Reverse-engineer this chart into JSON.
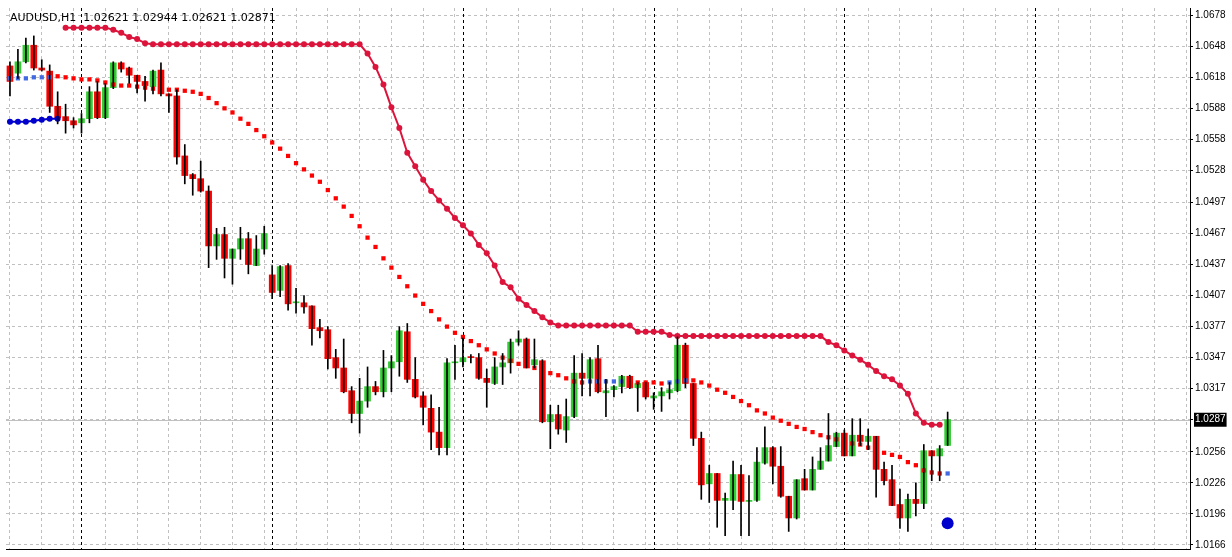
{
  "chart_data": {
    "type": "candlestick",
    "title": "AUDUSD,H1  1.02621 1.02944 1.02621 1.02871",
    "categories": [
      null,
      null,
      null,
      null,
      null,
      null,
      null,
      null,
      null,
      null,
      null,
      null,
      null,
      null,
      null,
      null,
      null,
      null,
      null,
      null,
      null,
      null,
      null,
      null,
      null,
      null,
      null,
      null,
      null,
      null,
      null,
      null,
      null,
      null,
      null,
      null,
      null,
      null,
      null,
      null,
      null,
      null,
      null,
      null,
      null,
      null,
      null,
      null,
      null,
      null,
      null,
      null,
      null,
      null,
      null,
      null,
      null,
      null,
      null,
      null,
      null,
      null,
      null,
      null,
      null,
      null,
      null,
      null,
      null,
      null,
      null,
      null,
      null,
      null,
      null,
      null,
      null,
      null,
      null,
      null,
      null,
      null,
      null,
      null,
      null,
      null,
      null,
      null,
      null,
      null,
      null,
      null,
      null,
      null,
      null,
      null,
      null,
      null,
      null,
      null,
      null,
      null,
      null,
      null,
      null,
      null,
      null,
      null,
      null,
      null,
      null,
      null,
      null,
      null,
      null,
      null,
      null,
      null,
      null,
      null,
      null,
      null,
      null,
      null,
      null,
      null,
      null,
      null,
      null,
      null,
      null,
      null,
      null,
      null,
      null,
      null,
      null,
      null,
      null,
      null,
      null,
      null,
      null,
      null,
      null,
      null,
      null,
      null,
      null
    ],
    "colors": [
      "#ff0000",
      "#32cd32",
      "#32cd32",
      "#ff0000",
      "#ff0000",
      "#ff0000",
      "#ff0000",
      "#ff0000",
      "#ff0000",
      "#32cd32",
      "#32cd32",
      "#ff0000",
      "#32cd32",
      "#32cd32",
      "#ff0000",
      "#ff0000",
      "#ff0000",
      "#ff0000",
      "#32cd32",
      "#ff0000",
      "#ff0000",
      "#ff0000",
      "#ff0000",
      "#ff0000",
      "#ff0000",
      "#ff0000",
      "#32cd32",
      "#ff0000",
      "#32cd32",
      "#32cd32",
      "#ff0000",
      "#32cd32",
      "#32cd32",
      "#ff0000",
      "#32cd32",
      "#ff0000",
      "#32cd32",
      "#ff0000",
      "#ff0000",
      "#ff0000",
      "#ff0000",
      "#ff0000",
      "#ff0000",
      "#ff0000",
      "#32cd32",
      "#32cd32",
      "#ff0000",
      "#32cd32",
      "#32cd32",
      "#32cd32",
      "#ff0000",
      "#ff0000",
      "#ff0000",
      "#ff0000",
      "#ff0000",
      "#32cd32",
      "#32cd32",
      "#32cd32",
      "#ff0000",
      "#ff0000",
      "#ff0000",
      "#32cd32",
      "#32cd32",
      "#32cd32",
      "#32cd32",
      "#ff0000",
      "#32cd32",
      "#ff0000",
      "#32cd32",
      "#ff0000",
      "#32cd32",
      "#32cd32",
      "#ff0000",
      "#32cd32",
      "#ff0000",
      "#32cd32",
      "#32cd32",
      "#32cd32",
      "#ff0000",
      "#32cd32",
      "#ff0000",
      "#32cd32",
      "#32cd32",
      "#32cd32",
      "#32cd32",
      "#ff0000",
      "#ff0000",
      "#ff0000",
      "#32cd32",
      "#ff0000",
      "#32cd32",
      "#32cd32",
      "#ff0000",
      "#32cd32",
      "#32cd32",
      "#32cd32",
      "#ff0000",
      "#ff0000",
      "#ff0000",
      "#32cd32",
      "#ff0000",
      "#32cd32",
      "#32cd32",
      "#32cd32",
      "#32cd32",
      "#ff0000",
      "#32cd32",
      "#ff0000",
      "#32cd32",
      "#ff0000",
      "#ff0000",
      "#ff0000",
      "#ff0000",
      "#32cd32",
      "#ff0000",
      "#32cd32",
      "#ff0000",
      "#32cd32",
      "#32cd32",
      null,
      null,
      null,
      null,
      null,
      null,
      null,
      null,
      null,
      null,
      null,
      null,
      null,
      null,
      null,
      null,
      null,
      null,
      null,
      null,
      null,
      null,
      null,
      null,
      null,
      null,
      null,
      null,
      null,
      null
    ],
    "ohlc": [
      [
        1.0629,
        1.0633,
        1.06,
        1.0614
      ],
      [
        1.0622,
        1.0645,
        1.0617,
        1.0633
      ],
      [
        1.0633,
        1.0656,
        1.0632,
        1.0649
      ],
      [
        1.0649,
        1.0658,
        1.0625,
        1.0627
      ],
      [
        1.0627,
        1.0635,
        1.0624,
        1.0625
      ],
      [
        1.0624,
        1.063,
        1.0584,
        1.059
      ],
      [
        1.059,
        1.0604,
        1.0573,
        1.0579
      ],
      [
        1.058,
        1.0592,
        1.0564,
        1.0576
      ],
      [
        1.0576,
        1.0579,
        1.0569,
        1.0572
      ],
      [
        1.0574,
        1.0583,
        1.0564,
        1.0578
      ],
      [
        1.0578,
        1.0609,
        1.0574,
        1.0604
      ],
      [
        1.0604,
        1.0614,
        1.0578,
        1.0579
      ],
      [
        1.0579,
        1.0612,
        1.0578,
        1.0608
      ],
      [
        1.0608,
        1.0633,
        1.0607,
        1.0632
      ],
      [
        1.0632,
        1.0633,
        1.0623,
        1.0626
      ],
      [
        1.0627,
        1.0628,
        1.0612,
        1.062
      ],
      [
        1.062,
        1.062,
        1.0603,
        1.0614
      ],
      [
        1.0614,
        1.0619,
        1.0595,
        1.061
      ],
      [
        1.0609,
        1.0625,
        1.0602,
        1.0624
      ],
      [
        1.0625,
        1.0632,
        1.06,
        1.0602
      ],
      [
        1.0602,
        1.0602,
        1.0584,
        1.06
      ],
      [
        1.06,
        1.0606,
        1.0534,
        1.0541
      ],
      [
        1.0542,
        1.0553,
        1.0515,
        1.0523
      ],
      [
        1.0524,
        1.0525,
        1.0504,
        1.052
      ],
      [
        1.052,
        1.0537,
        1.0507,
        1.0508
      ],
      [
        1.0508,
        1.0513,
        1.0434,
        1.0455
      ],
      [
        1.0455,
        1.0472,
        1.0442,
        1.0466
      ],
      [
        1.0466,
        1.0473,
        1.0424,
        1.0443
      ],
      [
        1.0443,
        1.0452,
        1.0418,
        1.0452
      ],
      [
        1.0452,
        1.0473,
        1.0442,
        1.0462
      ],
      [
        1.0462,
        1.0468,
        1.0428,
        1.0437
      ],
      [
        1.0436,
        1.0465,
        1.0436,
        1.0452
      ],
      [
        1.0452,
        1.0474,
        1.0447,
        1.0467
      ],
      [
        1.0427,
        1.0436,
        1.0404,
        1.041
      ],
      [
        1.0412,
        1.0436,
        1.0406,
        1.0435
      ],
      [
        1.0436,
        1.0438,
        1.0393,
        1.0399
      ],
      [
        1.04,
        1.0414,
        1.039,
        1.04
      ],
      [
        1.04,
        1.0407,
        1.039,
        1.0396
      ],
      [
        1.0397,
        1.0397,
        1.0359,
        1.0375
      ],
      [
        1.0376,
        1.0384,
        1.0366,
        1.0373
      ],
      [
        1.0374,
        1.0377,
        1.0336,
        1.0346
      ],
      [
        1.0347,
        1.0355,
        1.0327,
        1.0337
      ],
      [
        1.0337,
        1.0365,
        1.0313,
        1.0314
      ],
      [
        1.0315,
        1.0319,
        1.0284,
        1.0293
      ],
      [
        1.0293,
        1.0327,
        1.0274,
        1.0305
      ],
      [
        1.0305,
        1.0338,
        1.0299,
        1.0319
      ],
      [
        1.0319,
        1.0324,
        1.0311,
        1.0314
      ],
      [
        1.0314,
        1.0354,
        1.0309,
        1.0337
      ],
      [
        1.0337,
        1.0349,
        1.0314,
        1.0343
      ],
      [
        1.0343,
        1.0377,
        1.0329,
        1.0373
      ],
      [
        1.0372,
        1.038,
        1.0323,
        1.0326
      ],
      [
        1.0326,
        1.0347,
        1.0308,
        1.0309
      ],
      [
        1.031,
        1.0314,
        1.0282,
        1.0299
      ],
      [
        1.0298,
        1.0311,
        1.0258,
        1.0275
      ],
      [
        1.0275,
        1.0299,
        1.0253,
        1.026
      ],
      [
        1.026,
        1.0346,
        1.0253,
        1.0342
      ],
      [
        1.0342,
        1.0359,
        1.0326,
        1.0342
      ],
      [
        1.0343,
        1.0366,
        1.0338,
        1.0347
      ],
      [
        1.0348,
        1.035,
        1.0342,
        1.0347
      ],
      [
        1.0347,
        1.0351,
        1.0326,
        1.0327
      ],
      [
        1.0327,
        1.0336,
        1.0299,
        1.0323
      ],
      [
        1.0322,
        1.0347,
        1.0321,
        1.0338
      ],
      [
        1.0338,
        1.0351,
        1.0321,
        1.0342
      ],
      [
        1.0342,
        1.0365,
        1.0332,
        1.0362
      ],
      [
        1.0362,
        1.0373,
        1.0359,
        1.0365
      ],
      [
        1.0365,
        1.0366,
        1.0337,
        1.0337
      ],
      [
        1.034,
        1.0365,
        1.0337,
        1.0345
      ],
      [
        1.0344,
        1.0345,
        1.0284,
        1.0285
      ],
      [
        1.0285,
        1.0301,
        1.0259,
        1.0292
      ],
      [
        1.0292,
        1.0301,
        1.0273,
        1.0278
      ],
      [
        1.0277,
        1.0307,
        1.0265,
        1.029
      ],
      [
        1.029,
        1.0349,
        1.0289,
        1.0332
      ],
      [
        1.0332,
        1.0351,
        1.031,
        1.0327
      ],
      [
        1.0327,
        1.0347,
        1.031,
        1.0345
      ],
      [
        1.0346,
        1.0359,
        1.0313,
        1.0314
      ],
      [
        1.0313,
        1.0326,
        1.029,
        1.0315
      ],
      [
        1.0316,
        1.032,
        1.0309,
        1.0319
      ],
      [
        1.0319,
        1.033,
        1.0313,
        1.0329
      ],
      [
        1.0329,
        1.033,
        1.0317,
        1.0318
      ],
      [
        1.0318,
        1.0323,
        1.0295,
        1.0322
      ],
      [
        1.0323,
        1.0323,
        1.0307,
        1.0309
      ],
      [
        1.0308,
        1.0313,
        1.0297,
        1.031
      ],
      [
        1.031,
        1.0318,
        1.0295,
        1.0314
      ],
      [
        1.0313,
        1.0323,
        1.0307,
        1.0316
      ],
      [
        1.0315,
        1.0367,
        1.0314,
        1.0359
      ],
      [
        1.0359,
        1.0361,
        1.0318,
        1.0322
      ],
      [
        1.0322,
        1.0322,
        1.0262,
        1.0269
      ],
      [
        1.0269,
        1.0275,
        1.021,
        1.0224
      ],
      [
        1.0225,
        1.0243,
        1.0207,
        1.0235
      ],
      [
        1.0235,
        1.0235,
        1.0183,
        1.0209
      ],
      [
        1.0209,
        1.0216,
        1.0175,
        1.0211
      ],
      [
        1.0209,
        1.0247,
        1.02,
        1.0234
      ],
      [
        1.0234,
        1.0243,
        1.0175,
        1.0208
      ],
      [
        1.0208,
        1.0233,
        1.0175,
        1.0209
      ],
      [
        1.0209,
        1.026,
        1.0208,
        1.0246
      ],
      [
        1.0245,
        1.028,
        1.0244,
        1.026
      ],
      [
        1.026,
        1.0261,
        1.0225,
        1.0242
      ],
      [
        1.0242,
        1.0261,
        1.0212,
        1.0213
      ],
      [
        1.0213,
        1.0213,
        1.0179,
        1.0192
      ],
      [
        1.0192,
        1.0229,
        1.0191,
        1.0229
      ],
      [
        1.023,
        1.0239,
        1.0219,
        1.0219
      ],
      [
        1.0219,
        1.0251,
        1.0219,
        1.0239
      ],
      [
        1.0239,
        1.026,
        1.0239,
        1.0247
      ],
      [
        1.0247,
        1.0293,
        1.0247,
        1.0262
      ],
      [
        1.0261,
        1.0275,
        1.0261,
        1.0274
      ],
      [
        1.0274,
        1.0277,
        1.0252,
        1.0252
      ],
      [
        1.0252,
        1.0288,
        1.0252,
        1.0272
      ],
      [
        1.0272,
        1.0288,
        1.0262,
        1.0266
      ],
      [
        1.0266,
        1.0278,
        1.0258,
        1.0271
      ],
      [
        1.0271,
        1.0271,
        1.0212,
        1.0239
      ],
      [
        1.0239,
        1.0246,
        1.0224,
        1.0228
      ],
      [
        1.0229,
        1.0243,
        1.0204,
        1.0204
      ],
      [
        1.0205,
        1.022,
        1.0182,
        1.0192
      ],
      [
        1.0192,
        1.0215,
        1.0179,
        1.021
      ],
      [
        1.021,
        1.0226,
        1.0194,
        1.0206
      ],
      [
        1.0206,
        1.0263,
        1.0201,
        1.0257
      ],
      [
        1.0257,
        1.0257,
        1.0228,
        1.0252
      ],
      [
        1.0252,
        1.0262,
        1.0228,
        1.0259
      ],
      [
        1.02621,
        1.02944,
        1.02621,
        1.02871
      ],
      null,
      null,
      null,
      null,
      null,
      null,
      null,
      null,
      null,
      null,
      null,
      null,
      null,
      null,
      null,
      null,
      null,
      null,
      null,
      null,
      null,
      null,
      null,
      null,
      null,
      null,
      null,
      null,
      null,
      null
    ],
    "series": [
      {
        "type": "line",
        "marker": "circle",
        "color": "#dc143c",
        "values": [
          null,
          null,
          null,
          null,
          null,
          null,
          null,
          1.0666,
          1.0666,
          1.0666,
          1.0666,
          1.0666,
          1.0666,
          1.0664,
          1.0661,
          1.0657,
          1.0655,
          1.0651,
          1.065,
          1.065,
          1.065,
          1.065,
          1.065,
          1.065,
          1.065,
          1.065,
          1.065,
          1.065,
          1.065,
          1.065,
          1.065,
          1.065,
          1.065,
          1.065,
          1.065,
          1.065,
          1.065,
          1.065,
          1.065,
          1.065,
          1.065,
          1.065,
          1.065,
          1.065,
          1.065,
          1.0641,
          1.0628,
          1.0611,
          1.0589,
          1.0569,
          1.0545,
          1.0532,
          1.0519,
          1.0508,
          1.0499,
          1.0491,
          1.0482,
          1.0475,
          1.0467,
          1.0456,
          1.0448,
          1.0436,
          1.042,
          1.0415,
          1.0404,
          1.0398,
          1.0392,
          1.0386,
          1.0381,
          1.0378,
          1.0378,
          1.0378,
          1.0378,
          1.0378,
          1.0378,
          1.0378,
          1.0378,
          1.0378,
          1.0378,
          1.0372,
          1.0372,
          1.0372,
          1.0372,
          1.0369,
          1.0368,
          1.0368,
          1.0368,
          1.0368,
          1.0368,
          1.0368,
          1.0368,
          1.0368,
          1.0368,
          1.0368,
          1.0368,
          1.0368,
          1.0368,
          1.0368,
          1.0368,
          1.0368,
          1.0368,
          1.0368,
          1.0368,
          1.0362,
          1.0359,
          1.0354,
          1.0349,
          1.0345,
          1.034,
          1.0334,
          1.0329,
          1.0326,
          1.032,
          1.0312,
          1.0293,
          1.0284,
          1.0282,
          1.0282,
          null,
          null,
          null,
          null,
          null,
          null,
          null,
          null,
          null,
          null,
          null,
          null,
          null,
          null,
          null,
          null,
          null,
          null,
          null,
          null,
          null,
          null,
          null,
          null,
          null,
          null,
          null,
          null,
          null,
          null,
          null
        ]
      },
      {
        "type": "line",
        "marker": "circle",
        "color": "#0000cd",
        "values": [
          1.0575,
          1.0575,
          1.0575,
          1.0576,
          1.0577,
          1.0578,
          1.0578,
          null,
          null,
          null,
          null,
          null,
          null,
          null,
          null,
          null,
          null,
          null,
          null,
          null,
          null,
          null,
          null,
          null,
          null,
          null,
          null,
          null,
          null,
          null,
          null,
          null,
          null,
          null,
          null,
          null,
          null,
          null,
          null,
          null,
          null,
          null,
          null,
          null,
          null,
          null,
          null,
          null,
          null,
          null,
          null,
          null,
          null,
          null,
          null,
          null,
          null,
          null,
          null,
          null,
          null,
          null,
          null,
          null,
          null,
          null,
          null,
          null,
          null,
          null,
          null,
          null,
          null,
          null,
          null,
          null,
          null,
          null,
          null,
          null,
          null,
          null,
          null,
          null,
          null,
          null,
          null,
          null,
          null,
          null,
          null,
          null,
          null,
          null,
          null,
          null,
          null,
          null,
          null,
          null,
          null,
          null,
          null,
          null,
          null,
          null,
          null,
          null,
          null,
          null,
          null,
          null,
          null,
          null,
          null,
          null,
          null,
          null,
          null,
          null,
          null,
          null,
          null,
          null,
          null,
          null,
          null,
          null,
          null,
          null,
          null,
          null,
          null,
          null,
          null,
          null,
          null,
          null,
          null,
          null,
          null,
          null,
          null,
          null,
          null,
          null,
          null,
          null,
          null
        ]
      },
      {
        "type": "scatter",
        "marker": "square",
        "color": "#ff0000",
        "values": [
          null,
          null,
          null,
          null,
          null,
          null,
          1.0619,
          1.0618,
          1.0617,
          1.0616,
          1.0616,
          1.0615,
          1.0613,
          1.0611,
          1.061,
          1.061,
          1.0609,
          1.0608,
          1.0607,
          null,
          1.0606,
          1.0606,
          1.0605,
          1.0604,
          1.0602,
          1.0598,
          1.0593,
          1.0588,
          1.0584,
          1.0578,
          1.0573,
          1.0567,
          1.0561,
          1.0555,
          1.0549,
          1.0542,
          1.0535,
          1.0529,
          1.0523,
          1.0517,
          1.0509,
          1.0501,
          1.0493,
          1.0484,
          1.0474,
          1.0463,
          1.0454,
          1.0443,
          1.0434,
          1.0425,
          1.0416,
          1.0407,
          1.0399,
          1.0392,
          1.0384,
          1.0377,
          1.0371,
          1.0367,
          1.0363,
          1.0359,
          1.0355,
          1.0351,
          1.0347,
          1.0344,
          1.0341,
          null,
          1.0337,
          null,
          1.0332,
          1.033,
          1.0327,
          1.0324,
          1.0323,
          null,
          null,
          null,
          null,
          null,
          null,
          1.0323,
          1.0323,
          1.0323,
          1.0322,
          null,
          null,
          null,
          1.0325,
          1.0323,
          1.032,
          1.0316,
          1.0313,
          1.0309,
          1.0305,
          1.0301,
          1.0296,
          1.0293,
          1.0289,
          1.0286,
          1.0283,
          1.028,
          1.0278,
          1.0275,
          1.0272,
          1.027,
          1.0268,
          null,
          1.0264,
          1.0263,
          1.026,
          null,
          1.0255,
          1.0253,
          1.0251,
          1.0246,
          1.0243,
          1.0238,
          1.0236,
          1.0235,
          null,
          null,
          null,
          null,
          null,
          null,
          null,
          null,
          null,
          null,
          null,
          null,
          null,
          null,
          null,
          null,
          null,
          null,
          null,
          null,
          null,
          null,
          null,
          null,
          null,
          null,
          null,
          null,
          null,
          null,
          null
        ]
      },
      {
        "type": "scatter",
        "marker": "square",
        "color": "#4169e1",
        "values": [
          1.0617,
          1.0617,
          1.0617,
          1.0618,
          1.0618,
          1.0618,
          null,
          null,
          null,
          null,
          null,
          null,
          null,
          null,
          null,
          null,
          null,
          null,
          null,
          null,
          null,
          null,
          null,
          null,
          null,
          null,
          null,
          null,
          null,
          null,
          null,
          null,
          null,
          null,
          null,
          null,
          null,
          null,
          null,
          null,
          null,
          null,
          null,
          null,
          null,
          null,
          null,
          null,
          null,
          null,
          null,
          null,
          null,
          null,
          null,
          null,
          null,
          null,
          null,
          null,
          null,
          null,
          null,
          null,
          null,
          null,
          null,
          null,
          null,
          null,
          null,
          null,
          null,
          1.0324,
          1.0324,
          1.0324,
          1.0324,
          1.0324,
          null,
          null,
          null,
          null,
          null,
          1.0323,
          1.0324,
          1.0325,
          null,
          null,
          null,
          null,
          null,
          null,
          null,
          null,
          null,
          null,
          null,
          null,
          null,
          null,
          null,
          null,
          null,
          null,
          null,
          null,
          null,
          null,
          null,
          null,
          null,
          null,
          null,
          null,
          null,
          null,
          null,
          null,
          1.0235,
          null,
          null,
          null,
          null,
          null,
          null,
          null,
          null,
          null,
          null,
          null,
          null,
          null,
          null,
          null,
          null,
          null,
          null,
          null,
          null,
          null,
          null,
          null,
          null,
          null,
          null,
          null,
          null,
          null,
          null
        ]
      },
      {
        "type": "scatter",
        "marker": "circle",
        "color": "#0000cd",
        "values": [
          null,
          null,
          null,
          null,
          null,
          null,
          null,
          null,
          null,
          null,
          null,
          null,
          null,
          null,
          null,
          null,
          null,
          null,
          null,
          null,
          null,
          null,
          null,
          null,
          null,
          null,
          null,
          null,
          null,
          null,
          null,
          null,
          null,
          null,
          null,
          null,
          null,
          null,
          null,
          null,
          null,
          null,
          null,
          null,
          null,
          null,
          null,
          null,
          null,
          null,
          null,
          null,
          null,
          null,
          null,
          null,
          null,
          null,
          null,
          null,
          null,
          null,
          null,
          null,
          null,
          null,
          null,
          null,
          null,
          null,
          null,
          null,
          null,
          null,
          null,
          null,
          null,
          null,
          null,
          null,
          null,
          null,
          null,
          null,
          null,
          null,
          null,
          null,
          null,
          null,
          null,
          null,
          null,
          null,
          null,
          null,
          null,
          null,
          null,
          null,
          null,
          null,
          null,
          null,
          null,
          null,
          null,
          null,
          null,
          null,
          null,
          null,
          null,
          null,
          null,
          null,
          null,
          null,
          1.0187,
          null,
          null,
          null,
          null,
          null,
          null,
          null,
          null,
          null,
          null,
          null,
          null,
          null,
          null,
          null,
          null,
          null,
          null,
          null,
          null,
          null,
          null,
          null,
          null,
          null,
          null,
          null,
          null,
          null,
          null
        ]
      }
    ],
    "ylim": [
      1.0162,
      1.0685
    ],
    "yticks": [
      1.0166,
      1.0196,
      1.0226,
      1.0256,
      1.0287,
      1.0317,
      1.0347,
      1.0377,
      1.0407,
      1.0437,
      1.0467,
      1.0497,
      1.0528,
      1.0558,
      1.0588,
      1.0618,
      1.0648,
      1.0678
    ],
    "ref_lines": [
      {
        "axis": "y",
        "value": 1.0287,
        "color": "#c0c0c0"
      }
    ],
    "grid": true
  }
}
